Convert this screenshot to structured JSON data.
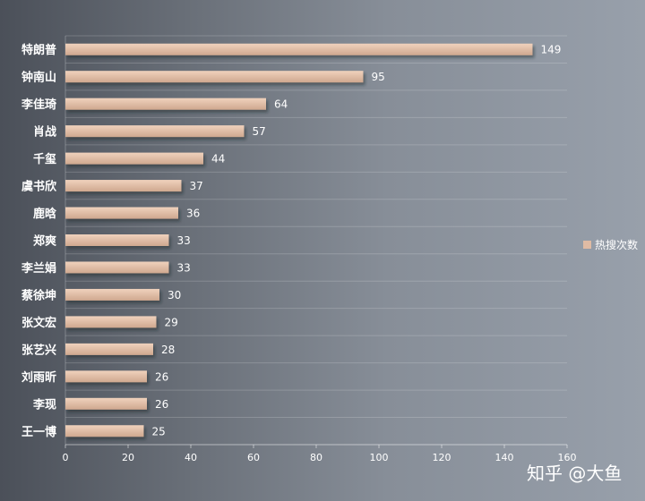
{
  "chart_data": {
    "type": "bar",
    "orientation": "horizontal",
    "categories": [
      "特朗普",
      "钟南山",
      "李佳琦",
      "肖战",
      "千玺",
      "虞书欣",
      "鹿晗",
      "郑爽",
      "李兰娟",
      "蔡徐坤",
      "张文宏",
      "张艺兴",
      "刘雨昕",
      "李现",
      "王一博"
    ],
    "series": [
      {
        "name": "热搜次数",
        "values": [
          149,
          95,
          64,
          57,
          44,
          37,
          36,
          33,
          33,
          30,
          29,
          28,
          26,
          26,
          25
        ]
      }
    ],
    "xlim": [
      0,
      160
    ],
    "xticks": [
      0,
      20,
      40,
      60,
      80,
      100,
      120,
      140,
      160
    ],
    "grid": true,
    "legend_position": "right",
    "bar_color": "#dfbba4"
  },
  "watermark": "知乎 @大鱼"
}
